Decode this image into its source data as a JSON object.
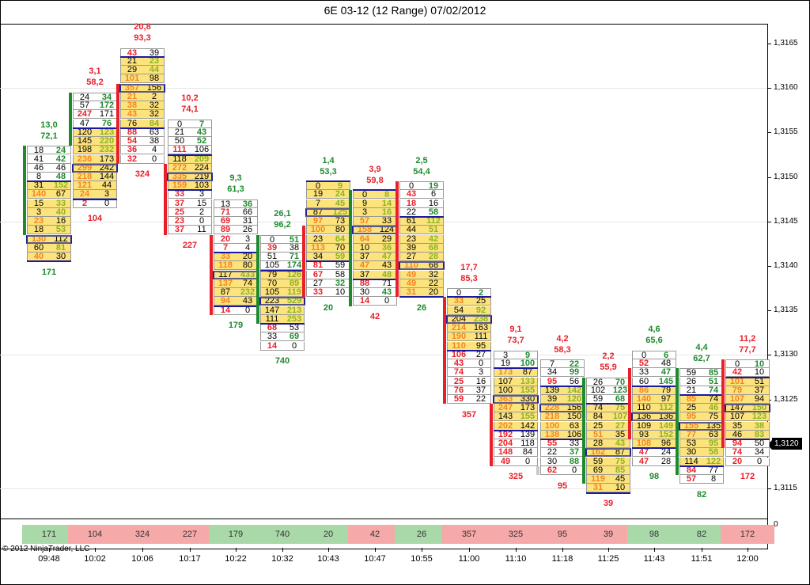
{
  "title": "6E 03-12 (12 Range)  07/02/2012",
  "copyright": "© 2012 NinjaTrader, LLC",
  "current_price": "1,3120",
  "subpanel_axis_label": "0",
  "colors": {
    "up": "#1e8a2e",
    "down": "#e8202a",
    "value_area": "#fde37c",
    "delta_up_box": "#a9d8a9",
    "delta_down_box": "#f6a9a9",
    "doji": "#c8c8c8",
    "value_area_line": "#1a1aa0"
  },
  "chart_data": {
    "type": "footprint",
    "tick_size": 0.0001,
    "ylim": [
      1.3111,
      1.317
    ],
    "y_ticks": [
      "1,3165",
      "1,3160",
      "1,3155",
      "1,3150",
      "1,3145",
      "1,3140",
      "1,3135",
      "1,3130",
      "1,3125",
      "1,3120",
      "1,3115"
    ],
    "grid_prices": [
      1.316,
      1.3145,
      1.313,
      1.3115
    ],
    "bars": [
      {
        "time": "09:48",
        "top": 1.3153,
        "open": 1.3144,
        "close": 1.3153,
        "stat1": "13,0",
        "stat2": "72,1",
        "delta": "171",
        "dir": "up",
        "va": [
          4,
          12
        ],
        "poc": 10,
        "rows": [
          [
            18,
            24
          ],
          [
            41,
            42
          ],
          [
            46,
            46
          ],
          [
            8,
            48
          ],
          [
            31,
            152
          ],
          [
            140,
            67
          ],
          [
            15,
            33
          ],
          [
            3,
            40
          ],
          [
            23,
            16
          ],
          [
            18,
            53
          ],
          [
            130,
            112
          ],
          [
            60,
            81
          ],
          [
            40,
            30
          ]
        ]
      },
      {
        "time": "10:02",
        "top": 1.3159,
        "open": 1.3154,
        "close": 1.3159,
        "stat1": "3,1",
        "stat2": "58,2",
        "delta": "104",
        "dir": "down",
        "va": [
          4,
          11
        ],
        "poc": 8,
        "rows": [
          [
            24,
            34
          ],
          [
            57,
            172
          ],
          [
            247,
            171
          ],
          [
            47,
            76
          ],
          [
            120,
            123
          ],
          [
            145,
            220
          ],
          [
            198,
            232
          ],
          [
            236,
            173
          ],
          [
            299,
            242
          ],
          [
            218,
            144
          ],
          [
            121,
            44
          ],
          [
            24,
            3
          ],
          [
            2,
            0
          ]
        ]
      },
      {
        "time": "10:06",
        "top": 1.3164,
        "open": 1.316,
        "close": 1.3152,
        "stat1": "20,8",
        "stat2": "93,3",
        "delta": "324",
        "dir": "down",
        "va": [
          1,
          8
        ],
        "poc": 4,
        "rows": [
          [
            43,
            39
          ],
          [
            21,
            23
          ],
          [
            29,
            44
          ],
          [
            101,
            98
          ],
          [
            357,
            156
          ],
          [
            21,
            2
          ],
          [
            38,
            32
          ],
          [
            43,
            32
          ],
          [
            76,
            84
          ],
          [
            88,
            63
          ],
          [
            54,
            38
          ],
          [
            36,
            4
          ],
          [
            32,
            0
          ]
        ]
      },
      {
        "time": "10:17",
        "top": 1.3156,
        "open": 1.3151,
        "close": 1.3144,
        "stat1": "10,2",
        "stat2": "74,1",
        "delta": "227",
        "dir": "down",
        "va": [
          4,
          7
        ],
        "poc": 6,
        "rows": [
          [
            0,
            7
          ],
          [
            21,
            43
          ],
          [
            50,
            52
          ],
          [
            111,
            106
          ],
          [
            118,
            209
          ],
          [
            272,
            224
          ],
          [
            335,
            219
          ],
          [
            159,
            103
          ],
          [
            33,
            3
          ],
          [
            37,
            15
          ],
          [
            25,
            2
          ],
          [
            23,
            0
          ],
          [
            37,
            11
          ]
        ]
      },
      {
        "time": "10:22",
        "top": 1.3147,
        "open": 1.3143,
        "close": 1.3135,
        "stat1": "9,3",
        "stat2": "61,3",
        "delta": "179",
        "dir": "up",
        "va": [
          6,
          11
        ],
        "poc": 8,
        "rows": [
          [
            13,
            36
          ],
          [
            71,
            66
          ],
          [
            69,
            31
          ],
          [
            89,
            26
          ],
          [
            20,
            3
          ],
          [
            7,
            4
          ],
          [
            33,
            20
          ],
          [
            118,
            80
          ],
          [
            117,
            433
          ],
          [
            137,
            74
          ],
          [
            87,
            232
          ],
          [
            94,
            43
          ],
          [
            14,
            0
          ]
        ]
      },
      {
        "time": "10:32",
        "top": 1.3143,
        "open": 1.3134,
        "close": 1.3143,
        "stat1": "26,1",
        "stat2": "96,2",
        "delta": "740",
        "dir": "up",
        "va": [
          4,
          9
        ],
        "poc": 7,
        "rows": [
          [
            0,
            51
          ],
          [
            39,
            38
          ],
          [
            51,
            71
          ],
          [
            105,
            174
          ],
          [
            79,
            126
          ],
          [
            70,
            89
          ],
          [
            105,
            119
          ],
          [
            223,
            529
          ],
          [
            147,
            213
          ],
          [
            111,
            253
          ],
          [
            68,
            53
          ],
          [
            33,
            69
          ],
          [
            14,
            0
          ]
        ]
      },
      {
        "time": "10:43",
        "top": 1.3149,
        "open": 1.3144,
        "close": 1.3137,
        "stat1": "1,4",
        "stat2": "53,3",
        "delta": "20",
        "dir": "up",
        "va": [
          0,
          8
        ],
        "poc": 3,
        "rows": [
          [
            0,
            9
          ],
          [
            19,
            24
          ],
          [
            7,
            45
          ],
          [
            87,
            125
          ],
          [
            97,
            73
          ],
          [
            100,
            80
          ],
          [
            23,
            64
          ],
          [
            113,
            70
          ],
          [
            34,
            59
          ],
          [
            81,
            59
          ],
          [
            67,
            58
          ],
          [
            27,
            32
          ],
          [
            33,
            10
          ]
        ]
      },
      {
        "time": "10:47",
        "top": 1.3148,
        "open": 1.3136,
        "close": 1.3148,
        "stat1": "3,9",
        "stat2": "59,8",
        "delta": "42",
        "dir": "down",
        "va": [
          0,
          9
        ],
        "poc": 4,
        "rows": [
          [
            0,
            8
          ],
          [
            9,
            14
          ],
          [
            3,
            16
          ],
          [
            57,
            33
          ],
          [
            158,
            124
          ],
          [
            64,
            29
          ],
          [
            10,
            36
          ],
          [
            37,
            47
          ],
          [
            47,
            43
          ],
          [
            37,
            48
          ],
          [
            88,
            71
          ],
          [
            30,
            43
          ],
          [
            14,
            0
          ]
        ]
      },
      {
        "time": "10:55",
        "top": 1.3149,
        "open": 1.3149,
        "close": 1.3137,
        "stat1": "2,5",
        "stat2": "54,4",
        "delta": "26",
        "dir": "up",
        "va": [
          4,
          12
        ],
        "poc": 9,
        "rows": [
          [
            0,
            19
          ],
          [
            43,
            6
          ],
          [
            18,
            16
          ],
          [
            22,
            58
          ],
          [
            61,
            112
          ],
          [
            44,
            51
          ],
          [
            23,
            42
          ],
          [
            39,
            68
          ],
          [
            27,
            28
          ],
          [
            110,
            68
          ],
          [
            49,
            32
          ],
          [
            49,
            22
          ],
          [
            31,
            20
          ]
        ]
      },
      {
        "time": "11:00",
        "top": 1.3137,
        "open": 1.3136,
        "close": 1.3125,
        "stat1": "17,7",
        "stat2": "85,3",
        "delta": "357",
        "dir": "down",
        "va": [
          1,
          6
        ],
        "poc": 3,
        "rows": [
          [
            0,
            2
          ],
          [
            33,
            25
          ],
          [
            54,
            92
          ],
          [
            204,
            238
          ],
          [
            214,
            163
          ],
          [
            190,
            111
          ],
          [
            110,
            95
          ],
          [
            106,
            27
          ],
          [
            43,
            0
          ],
          [
            74,
            3
          ],
          [
            25,
            16
          ],
          [
            76,
            37
          ],
          [
            59,
            22
          ]
        ]
      },
      {
        "time": "11:10",
        "top": 1.313,
        "open": 1.3124,
        "close": 1.3118,
        "stat1": "9,1",
        "stat2": "73,7",
        "delta": "325",
        "dir": "down",
        "va": [
          2,
          8
        ],
        "poc": 5,
        "rows": [
          [
            3,
            9
          ],
          [
            19,
            100
          ],
          [
            173,
            87
          ],
          [
            107,
            133
          ],
          [
            100,
            155
          ],
          [
            363,
            330
          ],
          [
            247,
            173
          ],
          [
            143,
            155
          ],
          [
            202,
            142
          ],
          [
            192,
            139
          ],
          [
            204,
            118
          ],
          [
            148,
            84
          ],
          [
            49,
            0
          ]
        ]
      },
      {
        "time": "11:18",
        "top": 1.3129,
        "open": 1.3117,
        "close": 1.3117,
        "stat1": "4,2",
        "stat2": "58,3",
        "delta": "95",
        "dir": "down",
        "va": [
          3,
          8
        ],
        "poc": 5,
        "rows": [
          [
            7,
            22
          ],
          [
            34,
            99
          ],
          [
            95,
            56
          ],
          [
            139,
            142
          ],
          [
            39,
            120
          ],
          [
            228,
            156
          ],
          [
            218,
            150
          ],
          [
            100,
            63
          ],
          [
            138,
            106
          ],
          [
            55,
            33
          ],
          [
            22,
            37
          ],
          [
            30,
            88
          ],
          [
            62,
            0
          ]
        ]
      },
      {
        "time": "11:25",
        "top": 1.3127,
        "open": 1.3116,
        "close": 1.3127,
        "stat1": "2,2",
        "stat2": "55,9",
        "delta": "39",
        "dir": "down",
        "va": [
          3,
          12
        ],
        "poc": 8,
        "rows": [
          [
            26,
            70
          ],
          [
            102,
            123
          ],
          [
            59,
            68
          ],
          [
            74,
            75
          ],
          [
            84,
            107
          ],
          [
            25,
            27
          ],
          [
            51,
            35
          ],
          [
            28,
            43
          ],
          [
            162,
            87
          ],
          [
            59,
            75
          ],
          [
            69,
            85
          ],
          [
            119,
            45
          ],
          [
            31,
            10
          ]
        ]
      },
      {
        "time": "11:43",
        "top": 1.313,
        "open": 1.3128,
        "close": 1.3121,
        "stat1": "4,6",
        "stat2": "65,6",
        "delta": "98",
        "dir": "up",
        "va": [
          4,
          10
        ],
        "poc": 7,
        "rows": [
          [
            0,
            6
          ],
          [
            52,
            48
          ],
          [
            33,
            47
          ],
          [
            60,
            145
          ],
          [
            86,
            79
          ],
          [
            140,
            97
          ],
          [
            110,
            112
          ],
          [
            136,
            136
          ],
          [
            109,
            149
          ],
          [
            93,
            152
          ],
          [
            108,
            96
          ],
          [
            47,
            24
          ],
          [
            47,
            28
          ]
        ]
      },
      {
        "time": "11:51",
        "top": 1.3128,
        "open": 1.3117,
        "close": 1.3128,
        "stat1": "4,4",
        "stat2": "62,7",
        "delta": "82",
        "dir": "up",
        "va": [
          3,
          10
        ],
        "poc": 6,
        "rows": [
          [
            59,
            85
          ],
          [
            26,
            51
          ],
          [
            21,
            74
          ],
          [
            85,
            74
          ],
          [
            25,
            46
          ],
          [
            95,
            75
          ],
          [
            155,
            135
          ],
          [
            77,
            63
          ],
          [
            53,
            95
          ],
          [
            30,
            58
          ],
          [
            114,
            122
          ],
          [
            84,
            77
          ],
          [
            57,
            8
          ]
        ]
      },
      {
        "time": "12:00",
        "top": 1.3129,
        "open": 1.3129,
        "close": 1.312,
        "stat1": "11,2",
        "stat2": "77,7",
        "delta": "172",
        "dir": "down",
        "va": [
          2,
          8
        ],
        "poc": 5,
        "rows": [
          [
            0,
            10
          ],
          [
            42,
            10
          ],
          [
            101,
            51
          ],
          [
            79,
            37
          ],
          [
            107,
            94
          ],
          [
            147,
            150
          ],
          [
            107,
            123
          ],
          [
            35,
            38
          ],
          [
            46,
            83
          ],
          [
            94,
            50
          ],
          [
            74,
            34
          ],
          [
            20,
            0
          ]
        ]
      }
    ]
  }
}
